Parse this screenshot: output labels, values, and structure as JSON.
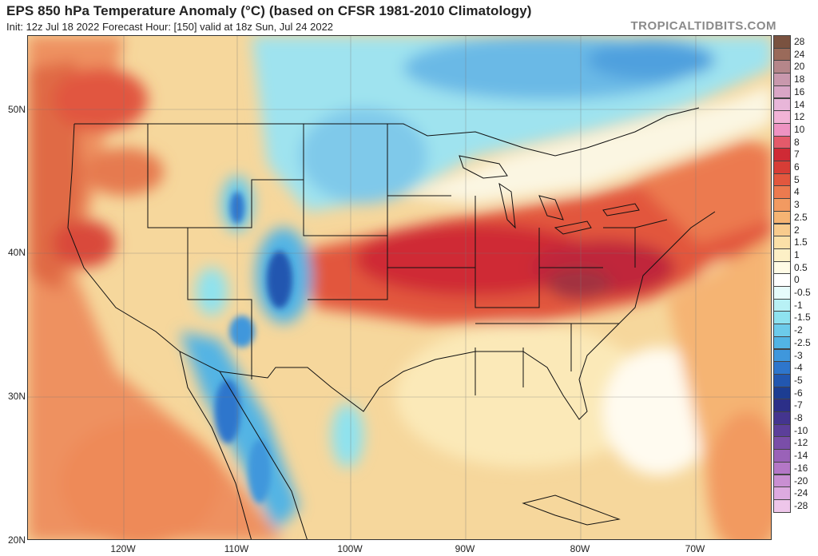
{
  "header": {
    "title": "EPS 850 hPa Temperature Anomaly (°C) (based on CFSR 1981-2010 Climatology)",
    "subtitle": "Init: 12z Jul 18 2022   Forecast Hour: [150]   valid at 18z Sun, Jul 24 2022",
    "brand": "TROPICALTIDBITS.COM"
  },
  "axes": {
    "lat_labels": [
      "50N",
      "40N",
      "30N",
      "20N"
    ],
    "lon_labels": [
      "120W",
      "110W",
      "100W",
      "90W",
      "80W",
      "70W"
    ]
  },
  "colorbar": {
    "levels": [
      "28",
      "24",
      "20",
      "18",
      "16",
      "14",
      "12",
      "10",
      "8",
      "7",
      "6",
      "5",
      "4",
      "3",
      "2.5",
      "2",
      "1.5",
      "1",
      "0.5",
      "0",
      "-0.5",
      "-1",
      "-1.5",
      "-2",
      "-2.5",
      "-3",
      "-4",
      "-5",
      "-6",
      "-7",
      "-8",
      "-10",
      "-12",
      "-14",
      "-16",
      "-20",
      "-24",
      "-28"
    ],
    "colors": [
      "#7a5240",
      "#9a6a5a",
      "#b5868a",
      "#c998ad",
      "#d9a6c6",
      "#e8b6d9",
      "#f2b3d6",
      "#ee93c2",
      "#e45a6a",
      "#cf2a35",
      "#d73d36",
      "#e2573e",
      "#ec7a4f",
      "#f29a61",
      "#f5b473",
      "#f8cb8d",
      "#fbe0a8",
      "#fdf0c6",
      "#fffbe6",
      "#ffffff",
      "#e6fbfb",
      "#b8f1f5",
      "#8ee2ef",
      "#6ccbea",
      "#52b4e4",
      "#3f97dc",
      "#2e76cc",
      "#2257b0",
      "#1c3d92",
      "#2c2f88",
      "#44358f",
      "#5c3f9a",
      "#7a4ea8",
      "#9a62b8",
      "#b477c6",
      "#c98fd2",
      "#ddaae0",
      "#eec6ea"
    ]
  }
}
